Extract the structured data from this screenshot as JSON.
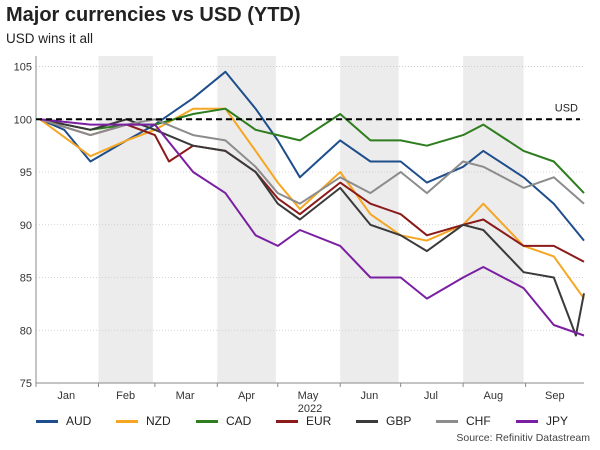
{
  "title": "Major currencies vs USD (YTD)",
  "subtitle": "USD wins it all",
  "source": "Source: Refinitiv Datastream",
  "chart_data": {
    "type": "line",
    "title": "Major currencies vs USD (YTD)",
    "subtitle": "USD wins it all",
    "xlabel": "2022",
    "ylabel": "",
    "x_range": [
      "2022-01-01",
      "2022-09-30"
    ],
    "ylim": [
      75,
      106
    ],
    "yticks": [
      75,
      80,
      85,
      90,
      95,
      100,
      105
    ],
    "month_labels": [
      "Jan",
      "Feb",
      "Mar",
      "Apr",
      "May",
      "Jun",
      "Jul",
      "Aug",
      "Sep"
    ],
    "shaded_months": [
      "Feb",
      "Apr",
      "Jun",
      "Aug"
    ],
    "grid": "horizontal dotted",
    "legend_position": "bottom",
    "reference_line": {
      "label": "USD",
      "value": 100
    },
    "series": [
      {
        "name": "AUD",
        "color": "#1f4e8c",
        "points": [
          [
            "2022-01-03",
            100
          ],
          [
            "2022-01-15",
            99
          ],
          [
            "2022-01-28",
            96
          ],
          [
            "2022-02-15",
            98
          ],
          [
            "2022-03-01",
            99.5
          ],
          [
            "2022-03-20",
            102
          ],
          [
            "2022-04-05",
            104.5
          ],
          [
            "2022-04-20",
            101
          ],
          [
            "2022-05-01",
            98
          ],
          [
            "2022-05-12",
            94.5
          ],
          [
            "2022-06-01",
            98
          ],
          [
            "2022-06-16",
            96
          ],
          [
            "2022-07-01",
            96
          ],
          [
            "2022-07-14",
            94
          ],
          [
            "2022-08-01",
            95.5
          ],
          [
            "2022-08-11",
            97
          ],
          [
            "2022-08-31",
            94.5
          ],
          [
            "2022-09-15",
            92
          ],
          [
            "2022-09-30",
            88.5
          ]
        ]
      },
      {
        "name": "NZD",
        "color": "#f5a623",
        "points": [
          [
            "2022-01-03",
            100
          ],
          [
            "2022-01-28",
            96.5
          ],
          [
            "2022-02-15",
            98
          ],
          [
            "2022-03-01",
            99
          ],
          [
            "2022-03-20",
            101
          ],
          [
            "2022-04-05",
            101
          ],
          [
            "2022-04-20",
            97
          ],
          [
            "2022-05-01",
            94
          ],
          [
            "2022-05-12",
            91.5
          ],
          [
            "2022-06-01",
            95
          ],
          [
            "2022-06-16",
            91
          ],
          [
            "2022-07-01",
            89
          ],
          [
            "2022-07-14",
            88.5
          ],
          [
            "2022-08-01",
            90
          ],
          [
            "2022-08-11",
            92
          ],
          [
            "2022-08-31",
            88
          ],
          [
            "2022-09-15",
            87
          ],
          [
            "2022-09-30",
            83
          ]
        ]
      },
      {
        "name": "CAD",
        "color": "#2e7d1e",
        "points": [
          [
            "2022-01-03",
            100
          ],
          [
            "2022-01-28",
            99
          ],
          [
            "2022-02-15",
            99.5
          ],
          [
            "2022-03-01",
            99.5
          ],
          [
            "2022-03-20",
            100.5
          ],
          [
            "2022-04-05",
            101
          ],
          [
            "2022-04-20",
            99
          ],
          [
            "2022-05-01",
            98.5
          ],
          [
            "2022-05-12",
            98
          ],
          [
            "2022-06-01",
            100.5
          ],
          [
            "2022-06-16",
            98
          ],
          [
            "2022-07-01",
            98
          ],
          [
            "2022-07-14",
            97.5
          ],
          [
            "2022-08-01",
            98.5
          ],
          [
            "2022-08-11",
            99.5
          ],
          [
            "2022-08-31",
            97
          ],
          [
            "2022-09-15",
            96
          ],
          [
            "2022-09-30",
            93
          ]
        ]
      },
      {
        "name": "EUR",
        "color": "#8b1a1a",
        "points": [
          [
            "2022-01-03",
            100
          ],
          [
            "2022-01-28",
            98.5
          ],
          [
            "2022-02-15",
            99.5
          ],
          [
            "2022-03-01",
            98.5
          ],
          [
            "2022-03-08",
            96
          ],
          [
            "2022-03-20",
            97.5
          ],
          [
            "2022-04-05",
            97
          ],
          [
            "2022-04-20",
            95
          ],
          [
            "2022-05-01",
            92.5
          ],
          [
            "2022-05-12",
            91
          ],
          [
            "2022-06-01",
            94
          ],
          [
            "2022-06-16",
            92
          ],
          [
            "2022-07-01",
            91
          ],
          [
            "2022-07-14",
            89
          ],
          [
            "2022-08-01",
            90
          ],
          [
            "2022-08-11",
            90.5
          ],
          [
            "2022-08-31",
            88
          ],
          [
            "2022-09-15",
            88
          ],
          [
            "2022-09-30",
            86.5
          ]
        ]
      },
      {
        "name": "GBP",
        "color": "#3a3a3a",
        "points": [
          [
            "2022-01-03",
            100
          ],
          [
            "2022-01-28",
            99
          ],
          [
            "2022-02-15",
            100
          ],
          [
            "2022-03-01",
            99
          ],
          [
            "2022-03-20",
            97.5
          ],
          [
            "2022-04-05",
            97
          ],
          [
            "2022-04-20",
            95
          ],
          [
            "2022-05-01",
            92
          ],
          [
            "2022-05-12",
            90.5
          ],
          [
            "2022-06-01",
            93.5
          ],
          [
            "2022-06-16",
            90
          ],
          [
            "2022-07-01",
            89
          ],
          [
            "2022-07-14",
            87.5
          ],
          [
            "2022-08-01",
            90
          ],
          [
            "2022-08-11",
            89.5
          ],
          [
            "2022-08-31",
            85.5
          ],
          [
            "2022-09-15",
            85
          ],
          [
            "2022-09-26",
            79.5
          ],
          [
            "2022-09-30",
            83.5
          ]
        ]
      },
      {
        "name": "CHF",
        "color": "#8c8c8c",
        "points": [
          [
            "2022-01-03",
            100
          ],
          [
            "2022-01-28",
            98.5
          ],
          [
            "2022-02-15",
            99.5
          ],
          [
            "2022-03-01",
            100
          ],
          [
            "2022-03-20",
            98.5
          ],
          [
            "2022-04-05",
            98
          ],
          [
            "2022-04-20",
            95.5
          ],
          [
            "2022-05-01",
            93
          ],
          [
            "2022-05-12",
            92
          ],
          [
            "2022-06-01",
            94.5
          ],
          [
            "2022-06-16",
            93
          ],
          [
            "2022-07-01",
            95
          ],
          [
            "2022-07-14",
            93
          ],
          [
            "2022-08-01",
            96
          ],
          [
            "2022-08-11",
            95.5
          ],
          [
            "2022-08-31",
            93.5
          ],
          [
            "2022-09-15",
            94.5
          ],
          [
            "2022-09-30",
            92
          ]
        ]
      },
      {
        "name": "JPY",
        "color": "#7b1fa2",
        "points": [
          [
            "2022-01-03",
            100
          ],
          [
            "2022-01-28",
            99.5
          ],
          [
            "2022-02-15",
            99.5
          ],
          [
            "2022-03-01",
            99.5
          ],
          [
            "2022-03-20",
            95
          ],
          [
            "2022-04-05",
            93
          ],
          [
            "2022-04-20",
            89
          ],
          [
            "2022-05-01",
            88
          ],
          [
            "2022-05-12",
            89.5
          ],
          [
            "2022-06-01",
            88
          ],
          [
            "2022-06-16",
            85
          ],
          [
            "2022-07-01",
            85
          ],
          [
            "2022-07-14",
            83
          ],
          [
            "2022-08-01",
            85
          ],
          [
            "2022-08-11",
            86
          ],
          [
            "2022-08-31",
            84
          ],
          [
            "2022-09-15",
            80.5
          ],
          [
            "2022-09-30",
            79.5
          ]
        ]
      }
    ]
  }
}
